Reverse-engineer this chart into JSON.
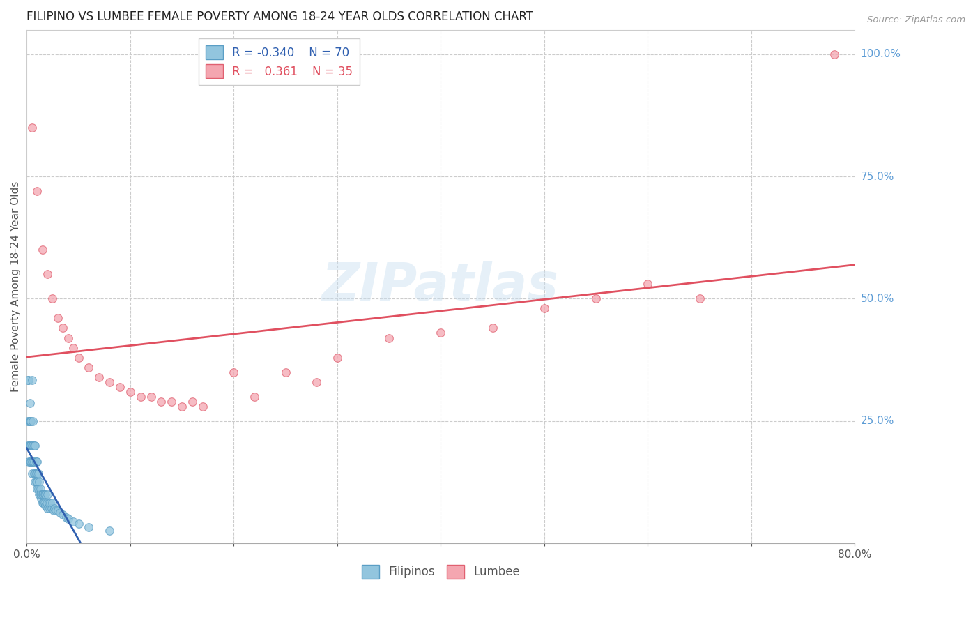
{
  "title": "FILIPINO VS LUMBEE FEMALE POVERTY AMONG 18-24 YEAR OLDS CORRELATION CHART",
  "source": "Source: ZipAtlas.com",
  "ylabel": "Female Poverty Among 18-24 Year Olds",
  "xlim": [
    0.0,
    0.8
  ],
  "ylim": [
    0.0,
    1.05
  ],
  "background_color": "#ffffff",
  "grid_color": "#cccccc",
  "title_color": "#222222",
  "right_label_color": "#5b9bd5",
  "filipino_color": "#92c5de",
  "lumbee_color": "#f4a6b0",
  "filipino_edge_color": "#5a9ec5",
  "lumbee_edge_color": "#e06070",
  "filipino_trend_color": "#3060b0",
  "lumbee_trend_color": "#e05060",
  "filipino_trend_dash_color": "#a8c8e8",
  "marker_size": 70,
  "legend_R_filipino": "-0.340",
  "legend_N_filipino": "70",
  "legend_R_lumbee": "0.361",
  "legend_N_lumbee": "35",
  "filipino_x": [
    0.001,
    0.001,
    0.001,
    0.002,
    0.002,
    0.002,
    0.002,
    0.003,
    0.003,
    0.003,
    0.003,
    0.004,
    0.004,
    0.004,
    0.005,
    0.005,
    0.005,
    0.005,
    0.006,
    0.006,
    0.006,
    0.007,
    0.007,
    0.007,
    0.008,
    0.008,
    0.008,
    0.009,
    0.009,
    0.009,
    0.01,
    0.01,
    0.01,
    0.01,
    0.011,
    0.011,
    0.012,
    0.012,
    0.013,
    0.013,
    0.014,
    0.014,
    0.015,
    0.015,
    0.016,
    0.016,
    0.017,
    0.017,
    0.018,
    0.018,
    0.019,
    0.02,
    0.02,
    0.021,
    0.022,
    0.023,
    0.024,
    0.025,
    0.026,
    0.027,
    0.028,
    0.03,
    0.032,
    0.035,
    0.038,
    0.04,
    0.045,
    0.05,
    0.06,
    0.08
  ],
  "filipino_y": [
    0.2,
    0.25,
    0.333,
    0.167,
    0.2,
    0.25,
    0.333,
    0.167,
    0.2,
    0.25,
    0.286,
    0.167,
    0.2,
    0.25,
    0.143,
    0.167,
    0.2,
    0.333,
    0.167,
    0.2,
    0.25,
    0.143,
    0.167,
    0.2,
    0.125,
    0.143,
    0.2,
    0.125,
    0.143,
    0.167,
    0.111,
    0.125,
    0.143,
    0.167,
    0.111,
    0.143,
    0.1,
    0.125,
    0.1,
    0.111,
    0.091,
    0.1,
    0.083,
    0.1,
    0.083,
    0.1,
    0.083,
    0.1,
    0.077,
    0.1,
    0.083,
    0.071,
    0.1,
    0.083,
    0.071,
    0.083,
    0.071,
    0.083,
    0.067,
    0.071,
    0.067,
    0.067,
    0.063,
    0.059,
    0.053,
    0.05,
    0.044,
    0.04,
    0.033,
    0.025
  ],
  "lumbee_x": [
    0.005,
    0.01,
    0.015,
    0.02,
    0.025,
    0.03,
    0.035,
    0.04,
    0.045,
    0.05,
    0.06,
    0.07,
    0.08,
    0.09,
    0.1,
    0.11,
    0.12,
    0.13,
    0.14,
    0.15,
    0.16,
    0.17,
    0.2,
    0.22,
    0.25,
    0.28,
    0.3,
    0.35,
    0.4,
    0.45,
    0.5,
    0.55,
    0.6,
    0.65,
    0.78
  ],
  "lumbee_y": [
    0.85,
    0.72,
    0.6,
    0.55,
    0.5,
    0.46,
    0.44,
    0.42,
    0.4,
    0.38,
    0.36,
    0.34,
    0.33,
    0.32,
    0.31,
    0.3,
    0.3,
    0.29,
    0.29,
    0.28,
    0.29,
    0.28,
    0.35,
    0.3,
    0.35,
    0.33,
    0.38,
    0.42,
    0.43,
    0.44,
    0.48,
    0.5,
    0.53,
    0.5,
    1.0
  ]
}
